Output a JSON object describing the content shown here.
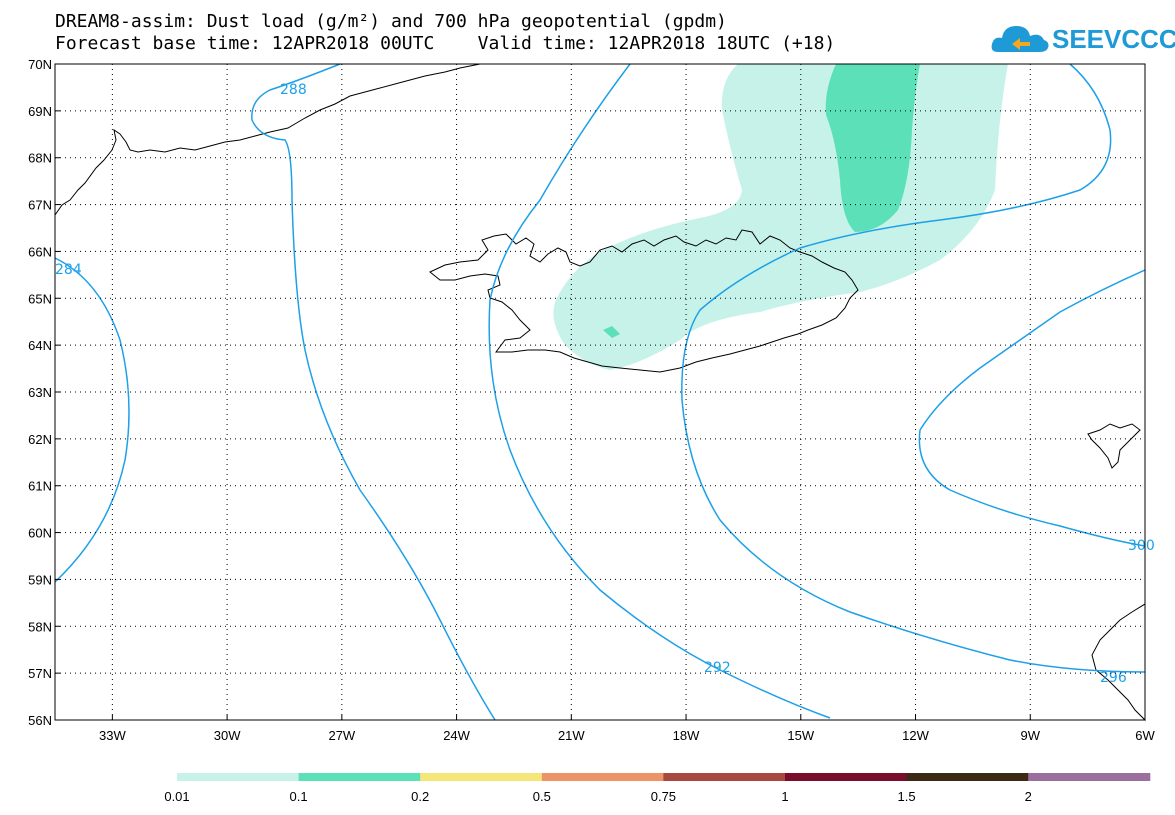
{
  "title": {
    "line1": "DREAM8-assim: Dust load (g/m²) and 700 hPa geopotential (gpdm)",
    "line2": "Forecast base time: 12APR2018 00UTC    Valid time: 12APR2018 18UTC (+18)"
  },
  "logo": {
    "text": "SEEVCCC",
    "icon": "cloud-icon"
  },
  "map": {
    "lon_range": [
      -34.5,
      -6
    ],
    "lat_range": [
      56,
      70
    ],
    "latitude_labels": [
      "56N",
      "57N",
      "58N",
      "59N",
      "60N",
      "61N",
      "62N",
      "63N",
      "64N",
      "65N",
      "66N",
      "67N",
      "68N",
      "69N",
      "70N"
    ],
    "longitude_labels": [
      "33W",
      "30W",
      "27W",
      "24W",
      "21W",
      "18W",
      "15W",
      "12W",
      "9W",
      "6W"
    ],
    "contour_labels": [
      "288",
      "284",
      "292",
      "296",
      "300"
    ],
    "contour_color": "#1ea0e8"
  },
  "colorbar": {
    "labels": [
      "0.01",
      "0.1",
      "0.2",
      "0.5",
      "0.75",
      "1",
      "1.5",
      "2"
    ],
    "colors": [
      "#c6f2ea",
      "#5ce0b8",
      "#f5e67a",
      "#ec9468",
      "#a8493f",
      "#7a0c2c",
      "#3d2a14",
      "#9a6fa0"
    ]
  }
}
